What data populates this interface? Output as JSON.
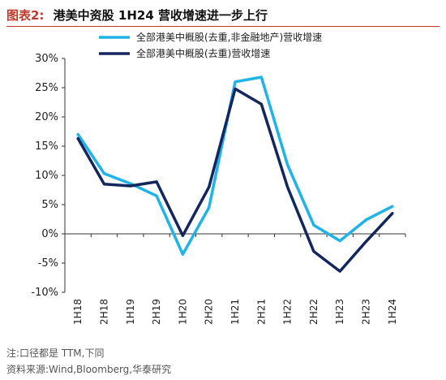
{
  "figure": {
    "label": "图表2:",
    "title": "港美中资股 1H24 营收增速进一步上行"
  },
  "footnotes": {
    "note": "注:口径都是 TTM,下同",
    "source": "资料来源:Wind,Bloomberg,华泰研究"
  },
  "colors": {
    "accent": "#c0392b",
    "series_light": "#1fb3e8",
    "series_dark": "#13265e"
  },
  "chart_data": {
    "type": "line",
    "title": "",
    "xlabel": "",
    "ylabel": "",
    "ylim": [
      -10,
      30
    ],
    "yticks": [
      -10,
      -5,
      0,
      5,
      10,
      15,
      20,
      25,
      30
    ],
    "ytick_labels": [
      "-10%",
      "-5%",
      "0%",
      "5%",
      "10%",
      "15%",
      "20%",
      "25%",
      "30%"
    ],
    "grid": false,
    "legend_position": "top",
    "categories": [
      "1H18",
      "2H18",
      "1H19",
      "2H19",
      "1H20",
      "2H20",
      "1H21",
      "2H21",
      "1H22",
      "2H22",
      "1H23",
      "2H23",
      "1H24"
    ],
    "series": [
      {
        "name": "全部港美中概股(去重,非金融地产)营收增速",
        "color": "#1fb3e8",
        "values": [
          17.0,
          10.3,
          8.6,
          6.5,
          -3.5,
          4.5,
          26.0,
          26.8,
          11.8,
          1.5,
          -1.2,
          2.4,
          4.7
        ]
      },
      {
        "name": "全部港美中概股(去重)营收增速",
        "color": "#13265e",
        "values": [
          16.3,
          8.5,
          8.2,
          8.9,
          -0.3,
          8.0,
          24.8,
          22.2,
          8.0,
          -3.0,
          -6.4,
          -1.3,
          3.5
        ]
      }
    ]
  }
}
